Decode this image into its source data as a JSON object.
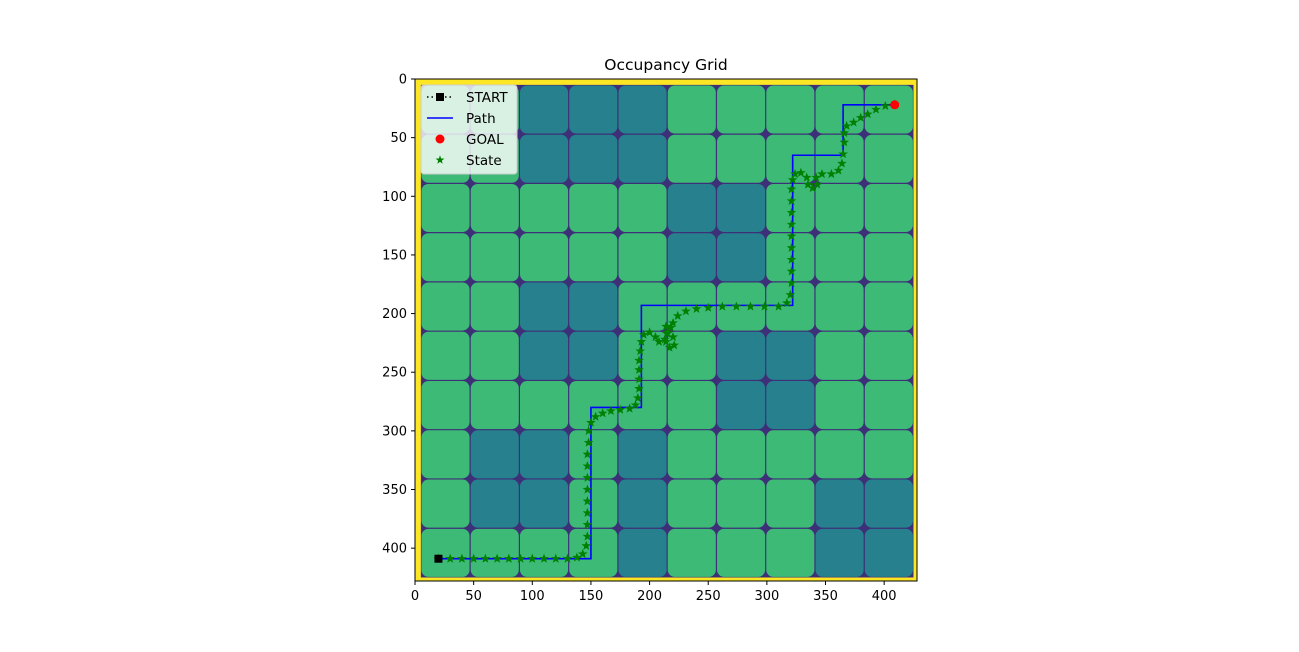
{
  "chart_data": {
    "type": "heatmap",
    "title": "Occupancy Grid",
    "xlabel": "",
    "ylabel": "",
    "xlim": [
      0,
      428
    ],
    "ylim": [
      428,
      0
    ],
    "x_ticks": [
      0,
      50,
      100,
      150,
      200,
      250,
      300,
      350,
      400
    ],
    "y_ticks": [
      0,
      50,
      100,
      150,
      200,
      250,
      300,
      350,
      400
    ],
    "grid": {
      "origin": 5,
      "cell_size": 42,
      "rows": 10,
      "cols": 10,
      "occupied": [
        [
          0,
          0,
          1,
          1,
          1,
          0,
          0,
          0,
          0,
          0
        ],
        [
          0,
          0,
          1,
          1,
          1,
          0,
          0,
          0,
          0,
          0
        ],
        [
          0,
          0,
          0,
          0,
          0,
          1,
          1,
          0,
          0,
          0
        ],
        [
          0,
          0,
          0,
          0,
          0,
          1,
          1,
          0,
          0,
          0
        ],
        [
          0,
          0,
          1,
          1,
          0,
          0,
          0,
          0,
          0,
          0
        ],
        [
          0,
          0,
          1,
          1,
          0,
          0,
          1,
          1,
          0,
          0
        ],
        [
          0,
          0,
          0,
          0,
          0,
          0,
          1,
          1,
          0,
          0
        ],
        [
          0,
          1,
          1,
          0,
          1,
          0,
          0,
          0,
          0,
          0
        ],
        [
          0,
          1,
          1,
          0,
          1,
          0,
          0,
          0,
          1,
          1
        ],
        [
          0,
          0,
          0,
          0,
          1,
          0,
          0,
          0,
          1,
          1
        ]
      ]
    },
    "colors": {
      "free": "#3dbb76",
      "occupied": "#26808e",
      "border": "#fde725",
      "boundary": "#3d2f78",
      "path": "#0000ff",
      "state": "#008000",
      "start": "#000000",
      "goal": "#ff0000"
    },
    "start": [
      20,
      409
    ],
    "goal": [
      409,
      22
    ],
    "path": [
      [
        20,
        409
      ],
      [
        150,
        409
      ],
      [
        150,
        280
      ],
      [
        193,
        280
      ],
      [
        193,
        193
      ],
      [
        322,
        193
      ],
      [
        322,
        65
      ],
      [
        365,
        65
      ],
      [
        365,
        22
      ],
      [
        409,
        22
      ]
    ],
    "states": [
      [
        20,
        409
      ],
      [
        30,
        409
      ],
      [
        40,
        409
      ],
      [
        50,
        409
      ],
      [
        60,
        409
      ],
      [
        70,
        409
      ],
      [
        80,
        409
      ],
      [
        90,
        409
      ],
      [
        100,
        409
      ],
      [
        110,
        409
      ],
      [
        120,
        409
      ],
      [
        130,
        409
      ],
      [
        138,
        408
      ],
      [
        143,
        405
      ],
      [
        146,
        398
      ],
      [
        147,
        390
      ],
      [
        147,
        380
      ],
      [
        147,
        370
      ],
      [
        147,
        360
      ],
      [
        147,
        350
      ],
      [
        147,
        340
      ],
      [
        147,
        330
      ],
      [
        147,
        320
      ],
      [
        148,
        310
      ],
      [
        148,
        300
      ],
      [
        150,
        293
      ],
      [
        154,
        288
      ],
      [
        160,
        285
      ],
      [
        167,
        283
      ],
      [
        175,
        282
      ],
      [
        183,
        281
      ],
      [
        188,
        278
      ],
      [
        190,
        272
      ],
      [
        191,
        264
      ],
      [
        191,
        256
      ],
      [
        191,
        248
      ],
      [
        191,
        240
      ],
      [
        192,
        232
      ],
      [
        193,
        224
      ],
      [
        195,
        218
      ],
      [
        200,
        216
      ],
      [
        205,
        220
      ],
      [
        208,
        224
      ],
      [
        213,
        222
      ],
      [
        215,
        217
      ],
      [
        214,
        211
      ],
      [
        218,
        212
      ],
      [
        220,
        220
      ],
      [
        221,
        227
      ],
      [
        217,
        229
      ],
      [
        214,
        224
      ],
      [
        215,
        216
      ],
      [
        220,
        208
      ],
      [
        224,
        202
      ],
      [
        231,
        198
      ],
      [
        240,
        196
      ],
      [
        250,
        195
      ],
      [
        262,
        194
      ],
      [
        274,
        194
      ],
      [
        286,
        194
      ],
      [
        298,
        194
      ],
      [
        310,
        194
      ],
      [
        317,
        191
      ],
      [
        320,
        184
      ],
      [
        321,
        174
      ],
      [
        321,
        164
      ],
      [
        321,
        154
      ],
      [
        321,
        144
      ],
      [
        321,
        134
      ],
      [
        321,
        124
      ],
      [
        321,
        114
      ],
      [
        321,
        104
      ],
      [
        321,
        94
      ],
      [
        322,
        86
      ],
      [
        324,
        81
      ],
      [
        329,
        80
      ],
      [
        334,
        84
      ],
      [
        335,
        90
      ],
      [
        339,
        93
      ],
      [
        343,
        90
      ],
      [
        342,
        84
      ],
      [
        347,
        81
      ],
      [
        355,
        81
      ],
      [
        361,
        78
      ],
      [
        364,
        72
      ],
      [
        365,
        64
      ],
      [
        366,
        54
      ],
      [
        366,
        46
      ],
      [
        368,
        40
      ],
      [
        374,
        37
      ],
      [
        380,
        33
      ],
      [
        386,
        30
      ],
      [
        393,
        26
      ],
      [
        401,
        23
      ],
      [
        409,
        22
      ]
    ],
    "legend": {
      "placement": "top-left",
      "entries": [
        {
          "label": "START",
          "marker": "square",
          "line": "dotted"
        },
        {
          "label": "Path",
          "marker": "none",
          "line": "solid"
        },
        {
          "label": "GOAL",
          "marker": "circle",
          "line": "none"
        },
        {
          "label": "State",
          "marker": "star",
          "line": "none"
        }
      ]
    }
  }
}
